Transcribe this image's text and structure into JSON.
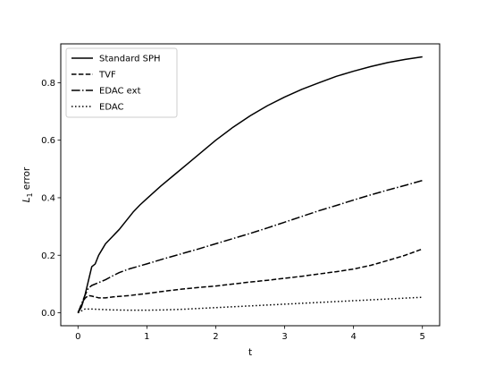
{
  "chart_data": {
    "type": "line",
    "title": "",
    "xlabel": "t",
    "ylabel": "L1 error",
    "ylabel_parts": {
      "base": "L",
      "sub": "1",
      "rest": " error"
    },
    "xlim": [
      -0.25,
      5.25
    ],
    "ylim": [
      -0.045,
      0.935
    ],
    "xticks": [
      0,
      1,
      2,
      3,
      4,
      5
    ],
    "yticks": [
      0.0,
      0.2,
      0.4,
      0.6,
      0.8
    ],
    "ytick_labels": [
      "0.0",
      "0.2",
      "0.4",
      "0.6",
      "0.8"
    ],
    "grid": false,
    "legend_position": "top-left",
    "series": [
      {
        "name": "Standard SPH",
        "style": "solid",
        "color": "#000000",
        "x": [
          0,
          0.05,
          0.1,
          0.15,
          0.2,
          0.25,
          0.3,
          0.35,
          0.4,
          0.5,
          0.6,
          0.7,
          0.8,
          0.9,
          1.0,
          1.2,
          1.4,
          1.6,
          1.8,
          2.0,
          2.25,
          2.5,
          2.75,
          3.0,
          3.25,
          3.5,
          3.75,
          4.0,
          4.25,
          4.5,
          4.75,
          5.0
        ],
        "values": [
          0.0,
          0.02,
          0.06,
          0.11,
          0.16,
          0.17,
          0.2,
          0.22,
          0.24,
          0.265,
          0.29,
          0.32,
          0.35,
          0.375,
          0.397,
          0.44,
          0.48,
          0.52,
          0.56,
          0.6,
          0.645,
          0.685,
          0.72,
          0.75,
          0.777,
          0.8,
          0.822,
          0.84,
          0.856,
          0.87,
          0.881,
          0.89
        ]
      },
      {
        "name": "TVF",
        "style": "dashed",
        "color": "#000000",
        "x": [
          0,
          0.1,
          0.15,
          0.2,
          0.3,
          0.4,
          0.5,
          0.75,
          1.0,
          1.25,
          1.5,
          1.75,
          2.0,
          2.25,
          2.5,
          2.75,
          3.0,
          3.25,
          3.5,
          3.75,
          4.0,
          4.25,
          4.5,
          4.75,
          5.0
        ],
        "values": [
          0.0,
          0.05,
          0.06,
          0.058,
          0.052,
          0.052,
          0.055,
          0.06,
          0.067,
          0.075,
          0.082,
          0.088,
          0.093,
          0.1,
          0.107,
          0.113,
          0.12,
          0.127,
          0.135,
          0.143,
          0.152,
          0.165,
          0.182,
          0.2,
          0.222
        ]
      },
      {
        "name": "EDAC ext",
        "style": "dashdot",
        "color": "#000000",
        "x": [
          0,
          0.1,
          0.15,
          0.2,
          0.3,
          0.4,
          0.5,
          0.6,
          0.75,
          1.0,
          1.25,
          1.5,
          1.75,
          2.0,
          2.25,
          2.5,
          2.75,
          3.0,
          3.25,
          3.5,
          3.75,
          4.0,
          4.25,
          4.5,
          4.75,
          5.0
        ],
        "values": [
          0.0,
          0.06,
          0.085,
          0.095,
          0.105,
          0.115,
          0.128,
          0.14,
          0.153,
          0.17,
          0.188,
          0.205,
          0.222,
          0.24,
          0.258,
          0.276,
          0.295,
          0.315,
          0.335,
          0.355,
          0.373,
          0.392,
          0.41,
          0.427,
          0.443,
          0.46
        ]
      },
      {
        "name": "EDAC",
        "style": "dotted",
        "color": "#000000",
        "x": [
          0,
          0.1,
          0.2,
          0.3,
          0.5,
          0.75,
          1.0,
          1.25,
          1.5,
          1.75,
          2.0,
          2.5,
          3.0,
          3.5,
          4.0,
          4.5,
          5.0
        ],
        "values": [
          0.0,
          0.013,
          0.013,
          0.012,
          0.01,
          0.009,
          0.009,
          0.01,
          0.012,
          0.015,
          0.018,
          0.024,
          0.03,
          0.036,
          0.042,
          0.048,
          0.054
        ]
      }
    ]
  }
}
